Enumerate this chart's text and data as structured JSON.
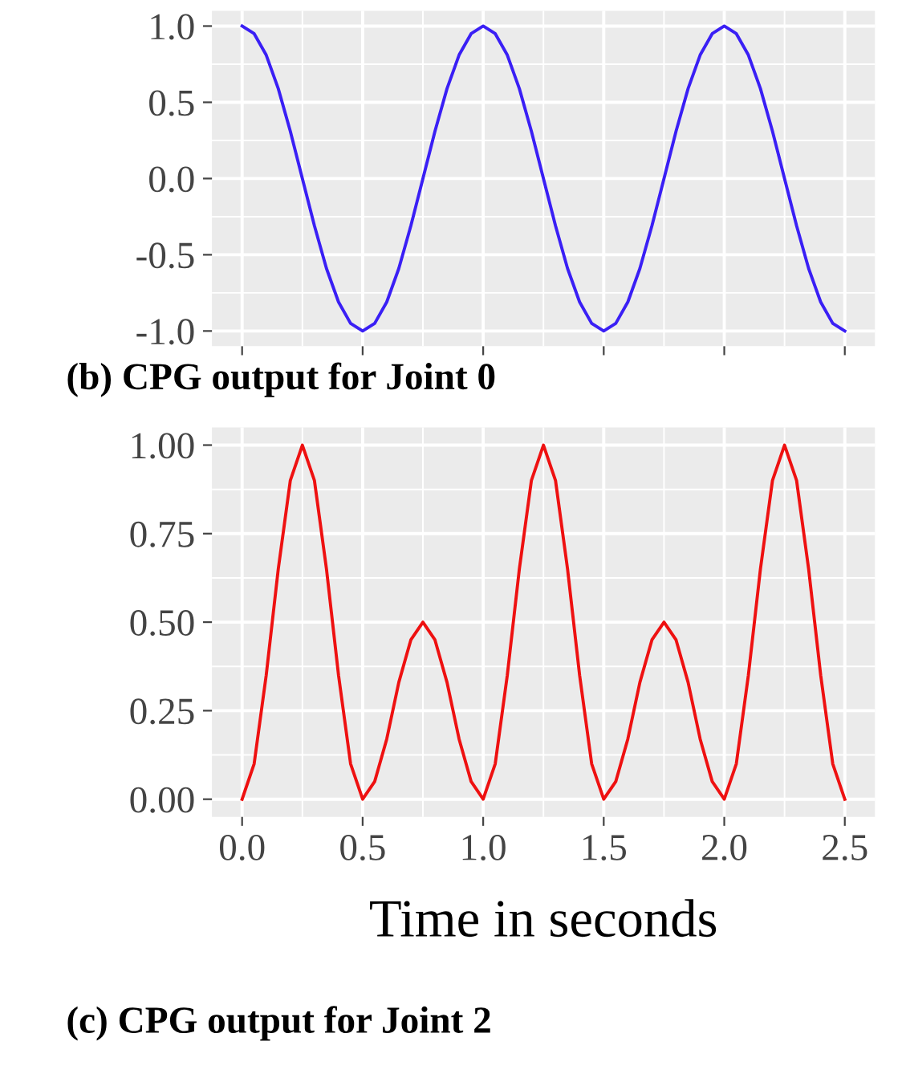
{
  "chart_data": [
    {
      "type": "line",
      "title": "(b) CPG output for Joint 0",
      "x": [
        0,
        0.05,
        0.1,
        0.15,
        0.2,
        0.25,
        0.3,
        0.35,
        0.4,
        0.45,
        0.5,
        0.55,
        0.6,
        0.65,
        0.7,
        0.75,
        0.8,
        0.85,
        0.9,
        0.95,
        1.0,
        1.05,
        1.1,
        1.15,
        1.2,
        1.25,
        1.3,
        1.35,
        1.4,
        1.45,
        1.5,
        1.55,
        1.6,
        1.65,
        1.7,
        1.75,
        1.8,
        1.85,
        1.9,
        1.95,
        2.0,
        2.05,
        2.1,
        2.15,
        2.2,
        2.25,
        2.3,
        2.35,
        2.4,
        2.45,
        2.5
      ],
      "series": [
        {
          "color": "#3a1ff5",
          "values": [
            1,
            0.95,
            0.81,
            0.59,
            0.31,
            0,
            -0.31,
            -0.59,
            -0.81,
            -0.95,
            -1,
            -0.95,
            -0.81,
            -0.59,
            -0.31,
            0,
            0.31,
            0.59,
            0.81,
            0.95,
            1,
            0.95,
            0.81,
            0.59,
            0.31,
            0,
            -0.31,
            -0.59,
            -0.81,
            -0.95,
            -1,
            -0.95,
            -0.81,
            -0.59,
            -0.31,
            0,
            0.31,
            0.59,
            0.81,
            0.95,
            1,
            0.95,
            0.81,
            0.59,
            0.31,
            0,
            -0.31,
            -0.59,
            -0.81,
            -0.95,
            -1
          ]
        }
      ],
      "xlim": [
        -0.125,
        2.625
      ],
      "xticks": [
        0,
        0.5,
        1.0,
        1.5,
        2.0,
        2.5
      ],
      "ylim": [
        -1.1,
        1.1
      ],
      "yticks": [
        {
          "value": -1,
          "label": "-1.0"
        },
        {
          "value": -0.5,
          "label": "-0.5"
        },
        {
          "value": 0,
          "label": "0.0"
        },
        {
          "value": 0.5,
          "label": "0.5"
        },
        {
          "value": 1,
          "label": "1.0"
        }
      ],
      "tick_labels": "y",
      "grid": true,
      "legend": false
    },
    {
      "type": "line",
      "title": "(c) CPG output for Joint 2",
      "xlabel": "Time in seconds",
      "x": [
        0,
        0.05,
        0.1,
        0.15,
        0.2,
        0.25,
        0.3,
        0.35,
        0.4,
        0.45,
        0.5,
        0.55,
        0.6,
        0.65,
        0.7,
        0.75,
        0.8,
        0.85,
        0.9,
        0.95,
        1.0,
        1.05,
        1.1,
        1.15,
        1.2,
        1.25,
        1.3,
        1.35,
        1.4,
        1.45,
        1.5,
        1.55,
        1.6,
        1.65,
        1.7,
        1.75,
        1.8,
        1.85,
        1.9,
        1.95,
        2.0,
        2.05,
        2.1,
        2.15,
        2.2,
        2.25,
        2.3,
        2.35,
        2.4,
        2.45,
        2.5
      ],
      "series": [
        {
          "color": "#ee1111",
          "values": [
            0,
            0.1,
            0.35,
            0.65,
            0.9,
            1,
            0.9,
            0.65,
            0.35,
            0.1,
            0,
            0.05,
            0.17,
            0.33,
            0.45,
            0.5,
            0.45,
            0.33,
            0.17,
            0.05,
            0,
            0.1,
            0.35,
            0.65,
            0.9,
            1,
            0.9,
            0.65,
            0.35,
            0.1,
            0,
            0.05,
            0.17,
            0.33,
            0.45,
            0.5,
            0.45,
            0.33,
            0.17,
            0.05,
            0,
            0.1,
            0.35,
            0.65,
            0.9,
            1,
            0.9,
            0.65,
            0.35,
            0.1,
            0
          ]
        }
      ],
      "xlim": [
        -0.125,
        2.625
      ],
      "xticks": [
        {
          "value": 0,
          "label": "0.0"
        },
        {
          "value": 0.5,
          "label": "0.5"
        },
        {
          "value": 1,
          "label": "1.0"
        },
        {
          "value": 1.5,
          "label": "1.5"
        },
        {
          "value": 2,
          "label": "2.0"
        },
        {
          "value": 2.5,
          "label": "2.5"
        }
      ],
      "ylim": [
        -0.05,
        1.05
      ],
      "yticks": [
        {
          "value": 0,
          "label": "0.00"
        },
        {
          "value": 0.25,
          "label": "0.25"
        },
        {
          "value": 0.5,
          "label": "0.50"
        },
        {
          "value": 0.75,
          "label": "0.75"
        },
        {
          "value": 1,
          "label": "1.00"
        }
      ],
      "grid": true,
      "legend": false
    }
  ]
}
